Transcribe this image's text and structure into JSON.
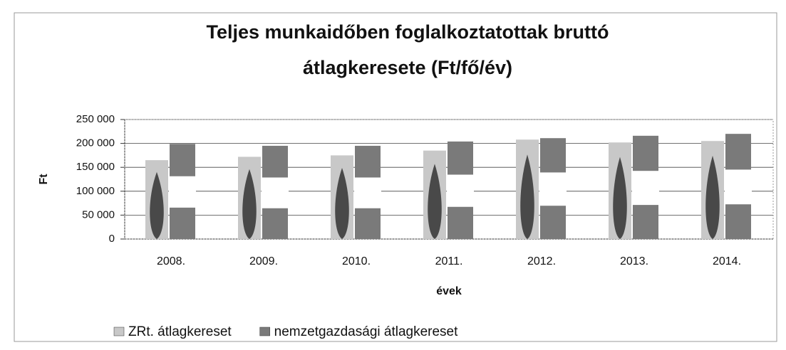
{
  "chart_data": {
    "type": "bar",
    "title": [
      "Teljes munkaidőben foglalkoztatottak bruttó",
      "átlagkeresete  (Ft/fő/év)"
    ],
    "y_label": "Ft",
    "x_label": "évek",
    "categories": [
      "2008.",
      "2009.",
      "2010.",
      "2011.",
      "2012.",
      "2013.",
      "2014."
    ],
    "series": [
      {
        "name": "ZRt. átlagkereset",
        "color": "#c8c8c8",
        "values": [
          165000,
          172000,
          175000,
          185000,
          208000,
          202000,
          205000
        ]
      },
      {
        "name": "nemzetgazdasági átlagkereset",
        "color": "#7a7a7a",
        "values": [
          199000,
          195000,
          195000,
          204000,
          211000,
          216000,
          220000
        ]
      }
    ],
    "ylim": [
      0,
      250000
    ],
    "yticks": [
      0,
      {
        "value": 50000,
        "label": "50 000"
      },
      {
        "value": 100000,
        "label": "100 000"
      },
      {
        "value": 150000,
        "label": "150 000"
      },
      {
        "value": 200000,
        "label": "200 000"
      },
      {
        "value": 250000,
        "label": "250 000"
      }
    ],
    "grid": true,
    "legend": "bottom"
  }
}
